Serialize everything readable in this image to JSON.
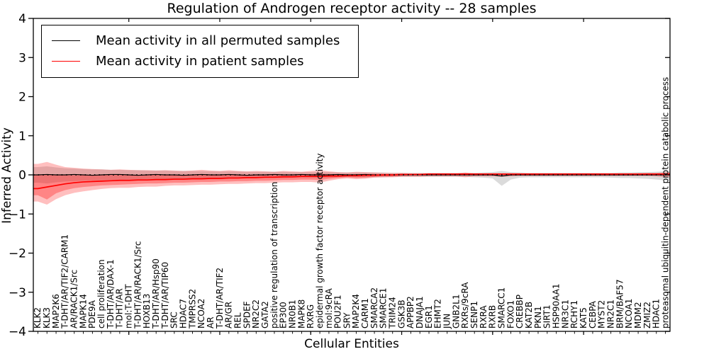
{
  "title": "Regulation of Androgen receptor activity -- 28 samples",
  "legend": {
    "items": [
      {
        "label": "Mean activity in all permuted samples",
        "color": "#000000"
      },
      {
        "label": "Mean activity in patient samples",
        "color": "#ff0000"
      }
    ]
  },
  "chart_data": {
    "type": "line",
    "title": "Regulation of Androgen receptor activity -- 28 samples",
    "xlabel": "Cellular Entities",
    "ylabel": "Inferred Activity",
    "ylim": [
      -4,
      4
    ],
    "yticks": [
      -4,
      -3,
      -2,
      -1,
      0,
      1,
      2,
      3,
      4
    ],
    "grid": false,
    "legend_position": "upper left",
    "sample_count": 28,
    "categories": [
      "KLK2",
      "KLK3",
      "MAP2K6",
      "T-DHT/AR/TIF2/CARM1",
      "AR/RACK1/Src",
      "MAPK14",
      "PDE9A",
      "cell proliferation",
      "T-DHT/AR/DAX-1",
      "T-DHT/AR",
      "mol:T-DHT",
      "T-DHT/AR/RACK1/Src",
      "HOXB13",
      "T-DHT/AR/Hsp90",
      "T-DHT/AR/TIP60",
      "SRC",
      "HDAC7",
      "TMPRSS2",
      "NCOA2",
      "AR",
      "T-DHT/AR/TIF2",
      "AR/GR",
      "REL",
      "SPDEF",
      "NR2C2",
      "GATA2",
      "positive regulation of transcription",
      "EP300",
      "NR0B1",
      "MAPK8",
      "RXRG",
      "epidermal growth factor receptor activity",
      "mol:9cRA",
      "POU2F1",
      "SRY",
      "MAP2K4",
      "CARM1",
      "SMARCA2",
      "SMARCE1",
      "TRIM24",
      "GSK3B",
      "APPBP2",
      "DNAJA1",
      "EGR1",
      "EHMT2",
      "JUN",
      "GNB2L1",
      "RXRs/9cRA",
      "SENP1",
      "RXRA",
      "RXRB",
      "SMARCC1",
      "FOXO1",
      "CREBBP",
      "KAT2B",
      "PKN1",
      "SIRT1",
      "HSP90AA1",
      "NR3C1",
      "RCHY1",
      "KAT5",
      "CEBPA",
      "MYST2",
      "NR2C1",
      "BRM/BAF57",
      "NCOA1",
      "MDM2",
      "ZMIZ2",
      "HDAC1",
      "proteasomal ubiquitin-dependent protein catabolic process"
    ],
    "series": [
      {
        "name": "Mean activity in all permuted samples",
        "color": "#000000",
        "style": "solid",
        "values": [
          0,
          0.01,
          0,
          0,
          0.01,
          0,
          -0.01,
          0,
          0.01,
          0.01,
          0,
          -0.01,
          0,
          0.01,
          0,
          0,
          -0.01,
          0,
          0.01,
          0,
          0,
          0.01,
          0,
          -0.01,
          0,
          0,
          0.01,
          0,
          0,
          0.01,
          0,
          0,
          0,
          0.01,
          0,
          0,
          0.01,
          0,
          0,
          0,
          0,
          0,
          0,
          0,
          0,
          0,
          0,
          0,
          0,
          0,
          0,
          -0.03,
          0,
          0,
          0,
          0,
          0,
          0,
          0,
          0,
          0,
          0,
          0,
          0,
          0,
          0,
          0,
          0,
          0,
          0
        ]
      },
      {
        "name": "Mean activity in patient samples",
        "color": "#ff0000",
        "style": "solid",
        "values": [
          -0.35,
          -0.31,
          -0.27,
          -0.23,
          -0.2,
          -0.18,
          -0.17,
          -0.16,
          -0.15,
          -0.14,
          -0.14,
          -0.13,
          -0.13,
          -0.12,
          -0.12,
          -0.11,
          -0.11,
          -0.1,
          -0.1,
          -0.09,
          -0.09,
          -0.08,
          -0.08,
          -0.07,
          -0.07,
          -0.06,
          -0.06,
          -0.05,
          -0.05,
          -0.04,
          -0.04,
          -0.04,
          -0.03,
          -0.03,
          -0.02,
          -0.02,
          -0.01,
          -0.01,
          0.0,
          0.0,
          0.01,
          0.01,
          0.01,
          0.02,
          0.02,
          0.02,
          0.02,
          0.02,
          0.02,
          0.02,
          0.02,
          0.02,
          0.02,
          0.02,
          0.02,
          0.02,
          0.02,
          0.02,
          0.02,
          0.02,
          0.02,
          0.02,
          0.02,
          0.02,
          0.02,
          0.02,
          0.02,
          0.02,
          0.02,
          0.02
        ]
      },
      {
        "name": "zero-reference",
        "color": "#000000",
        "style": "dotted",
        "values": [
          0,
          0,
          0,
          0,
          0,
          0,
          0,
          0,
          0,
          0,
          0,
          0,
          0,
          0,
          0,
          0,
          0,
          0,
          0,
          0,
          0,
          0,
          0,
          0,
          0,
          0,
          0,
          0,
          0,
          0,
          0,
          0,
          0,
          0,
          0,
          0,
          0,
          0,
          0,
          0,
          0,
          0,
          0,
          0,
          0,
          0,
          0,
          0,
          0,
          0,
          0,
          0,
          0,
          0,
          0,
          0,
          0,
          0,
          0,
          0,
          0,
          0,
          0,
          0,
          0,
          0,
          0,
          0,
          0,
          0
        ]
      }
    ],
    "bands": [
      {
        "name": "permuted-range",
        "color": "#888888",
        "opacity": 0.3,
        "upper": [
          0.2,
          0.22,
          0.19,
          0.17,
          0.16,
          0.15,
          0.14,
          0.14,
          0.13,
          0.13,
          0.12,
          0.12,
          0.11,
          0.11,
          0.11,
          0.1,
          0.1,
          0.1,
          0.1,
          0.09,
          0.09,
          0.09,
          0.09,
          0.08,
          0.08,
          0.08,
          0.08,
          0.08,
          0.07,
          0.07,
          0.07,
          0.07,
          0.07,
          0.06,
          0.06,
          0.06,
          0.06,
          0.06,
          0.06,
          0.05,
          0.05,
          0.05,
          0.05,
          0.05,
          0.05,
          0.05,
          0.05,
          0.05,
          0.05,
          0.06,
          0.07,
          0.1,
          0.07,
          0.06,
          0.05,
          0.05,
          0.05,
          0.05,
          0.05,
          0.05,
          0.05,
          0.05,
          0.05,
          0.05,
          0.06,
          0.06,
          0.07,
          0.07,
          0.08,
          0.09
        ],
        "lower": [
          -0.2,
          -0.22,
          -0.19,
          -0.17,
          -0.16,
          -0.15,
          -0.14,
          -0.14,
          -0.13,
          -0.13,
          -0.12,
          -0.12,
          -0.11,
          -0.11,
          -0.11,
          -0.1,
          -0.1,
          -0.1,
          -0.1,
          -0.09,
          -0.09,
          -0.09,
          -0.09,
          -0.08,
          -0.08,
          -0.08,
          -0.08,
          -0.08,
          -0.07,
          -0.07,
          -0.07,
          -0.07,
          -0.07,
          -0.06,
          -0.06,
          -0.06,
          -0.06,
          -0.06,
          -0.06,
          -0.05,
          -0.05,
          -0.05,
          -0.05,
          -0.05,
          -0.05,
          -0.05,
          -0.05,
          -0.05,
          -0.06,
          -0.07,
          -0.09,
          -0.28,
          -0.12,
          -0.07,
          -0.06,
          -0.06,
          -0.06,
          -0.06,
          -0.06,
          -0.06,
          -0.06,
          -0.06,
          -0.06,
          -0.07,
          -0.08,
          -0.08,
          -0.09,
          -0.1,
          -0.12,
          -0.14
        ]
      },
      {
        "name": "patient-range-outer",
        "color": "#ff0000",
        "opacity": 0.25,
        "upper": [
          0.28,
          0.33,
          0.26,
          0.2,
          0.18,
          0.16,
          0.15,
          0.14,
          0.13,
          0.14,
          0.13,
          0.12,
          0.12,
          0.11,
          0.12,
          0.11,
          0.1,
          0.11,
          0.13,
          0.11,
          0.1,
          0.12,
          0.1,
          0.09,
          0.1,
          0.09,
          0.08,
          0.1,
          0.09,
          0.08,
          0.1,
          0.12,
          0.09,
          0.07,
          0.06,
          0.08,
          0.07,
          0.06,
          0.05,
          0.05,
          0.05,
          0.04,
          0.04,
          0.04,
          0.04,
          0.04,
          0.04,
          0.06,
          0.04,
          0.04,
          0.04,
          0.04,
          0.04,
          0.04,
          0.04,
          0.04,
          0.04,
          0.04,
          0.04,
          0.04,
          0.04,
          0.04,
          0.04,
          0.04,
          0.04,
          0.04,
          0.04,
          0.05,
          0.05,
          0.07
        ],
        "lower": [
          -0.68,
          -0.76,
          -0.62,
          -0.52,
          -0.46,
          -0.42,
          -0.39,
          -0.36,
          -0.34,
          -0.33,
          -0.33,
          -0.31,
          -0.3,
          -0.3,
          -0.28,
          -0.27,
          -0.27,
          -0.26,
          -0.25,
          -0.25,
          -0.24,
          -0.23,
          -0.23,
          -0.22,
          -0.21,
          -0.21,
          -0.2,
          -0.19,
          -0.19,
          -0.18,
          -0.18,
          -0.2,
          -0.15,
          -0.11,
          -0.09,
          -0.11,
          -0.1,
          -0.07,
          -0.06,
          -0.06,
          -0.05,
          -0.05,
          -0.05,
          -0.04,
          -0.04,
          -0.04,
          -0.04,
          -0.06,
          -0.04,
          -0.04,
          -0.04,
          -0.05,
          -0.04,
          -0.03,
          -0.03,
          -0.03,
          -0.03,
          -0.03,
          -0.03,
          -0.03,
          -0.03,
          -0.03,
          -0.03,
          -0.03,
          -0.03,
          -0.03,
          -0.03,
          -0.03,
          -0.04,
          -0.06
        ]
      },
      {
        "name": "patient-range-inner",
        "color": "#ff0000",
        "opacity": 0.3,
        "upper": [
          0.0,
          0.02,
          0.0,
          -0.01,
          -0.01,
          -0.01,
          0.0,
          0.0,
          0.0,
          0.01,
          0.0,
          0.0,
          0.0,
          0.0,
          0.01,
          0.0,
          0.0,
          0.01,
          0.02,
          0.01,
          0.0,
          0.01,
          0.01,
          0.0,
          0.01,
          0.0,
          0.0,
          0.01,
          0.01,
          0.01,
          0.02,
          0.03,
          0.02,
          0.01,
          0.01,
          0.02,
          0.02,
          0.02,
          0.01,
          0.01,
          0.02,
          0.02,
          0.02,
          0.03,
          0.03,
          0.03,
          0.03,
          0.04,
          0.03,
          0.03,
          0.03,
          0.03,
          0.03,
          0.03,
          0.03,
          0.03,
          0.03,
          0.03,
          0.03,
          0.03,
          0.03,
          0.03,
          0.03,
          0.03,
          0.03,
          0.03,
          0.03,
          0.03,
          0.03,
          0.04
        ],
        "lower": [
          -0.52,
          -0.63,
          -0.47,
          -0.39,
          -0.34,
          -0.31,
          -0.29,
          -0.27,
          -0.26,
          -0.25,
          -0.24,
          -0.23,
          -0.22,
          -0.22,
          -0.21,
          -0.2,
          -0.2,
          -0.19,
          -0.18,
          -0.18,
          -0.17,
          -0.17,
          -0.16,
          -0.16,
          -0.15,
          -0.15,
          -0.14,
          -0.13,
          -0.13,
          -0.12,
          -0.12,
          -0.13,
          -0.1,
          -0.08,
          -0.06,
          -0.08,
          -0.07,
          -0.05,
          -0.04,
          -0.04,
          -0.02,
          -0.01,
          -0.01,
          0.0,
          0.0,
          0.0,
          0.0,
          -0.01,
          0.0,
          0.0,
          0.0,
          0.0,
          0.0,
          0.0,
          0.0,
          0.0,
          0.0,
          0.0,
          0.0,
          0.0,
          0.0,
          0.0,
          0.0,
          0.0,
          0.0,
          0.0,
          0.0,
          0.0,
          0.0,
          -0.01
        ]
      }
    ]
  }
}
